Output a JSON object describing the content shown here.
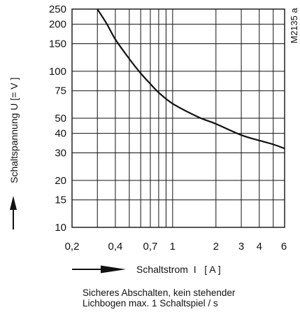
{
  "chart_data": {
    "type": "line",
    "xscale": "log",
    "yscale": "log",
    "xlim": [
      0.2,
      6
    ],
    "ylim": [
      10,
      250
    ],
    "x_ticks": [
      0.2,
      0.4,
      0.7,
      1,
      2,
      3,
      4,
      6
    ],
    "x_tick_labels": [
      "0,2",
      "0,4",
      "0,7",
      "1",
      "2",
      "3",
      "4",
      "6"
    ],
    "y_ticks": [
      10,
      15,
      20,
      30,
      40,
      50,
      75,
      100,
      150,
      200,
      250
    ],
    "y_tick_labels": [
      "10",
      "15",
      "20",
      "30",
      "40",
      "50",
      "75",
      "100",
      "150",
      "200",
      "250"
    ],
    "x_grid": [
      0.3,
      0.4,
      0.5,
      0.6,
      0.7,
      0.8,
      0.9,
      1,
      2,
      3,
      4,
      5,
      6
    ],
    "y_grid": [
      10,
      15,
      20,
      30,
      40,
      50,
      75,
      100,
      150,
      200,
      250
    ],
    "grid": true,
    "xlabel": "Schaltstrom  I   [ A ]",
    "ylabel": "Schaltspannung  U  [= V ]",
    "figure_id": "M2135 a",
    "series": [
      {
        "x": [
          0.3,
          0.35,
          0.4,
          0.5,
          0.6,
          0.7,
          0.8,
          1.0,
          1.5,
          2.0,
          3.0,
          4.0,
          5.0,
          6.0
        ],
        "y": [
          260,
          200,
          160,
          120,
          97,
          83,
          73,
          62,
          51,
          46,
          39,
          36,
          34,
          32
        ],
        "color": "#111111"
      }
    ]
  },
  "caption": {
    "line1": "Sicheres Abschalten, kein stehender",
    "line2": "Lichbogen max. 1 Schaltspiel / s"
  }
}
